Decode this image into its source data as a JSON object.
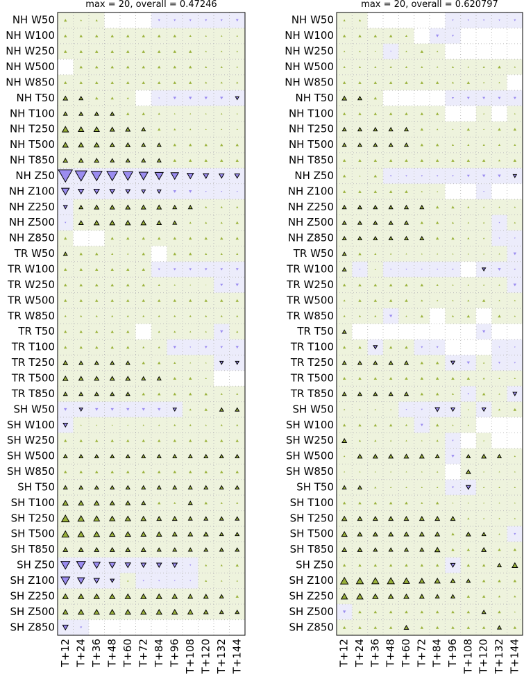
{
  "chart_data": [
    {
      "type": "scorecard",
      "title": "max = 20, overall = 0.47246",
      "rows": [
        "NH W50",
        "NH W100",
        "NH W250",
        "NH W500",
        "NH W850",
        "NH T50",
        "NH T100",
        "NH T250",
        "NH T500",
        "NH T850",
        "NH Z50",
        "NH Z100",
        "NH Z250",
        "NH Z500",
        "NH Z850",
        "TR W50",
        "TR W100",
        "TR W250",
        "TR W500",
        "TR W850",
        "TR T50",
        "TR T100",
        "TR T250",
        "TR T500",
        "TR T850",
        "SH W50",
        "SH W100",
        "SH W250",
        "SH W500",
        "SH W850",
        "SH T50",
        "SH T100",
        "SH T250",
        "SH T500",
        "SH T850",
        "SH Z50",
        "SH Z100",
        "SH Z250",
        "SH Z500",
        "SH Z850"
      ],
      "columns": [
        "T+12",
        "T+24",
        "T+36",
        "T+48",
        "T+60",
        "T+72",
        "T+84",
        "T+96",
        "T+108",
        "T+120",
        "T+132",
        "T+144"
      ],
      "pos_color": "#9ab23a",
      "neg_color": "#9b8cf0",
      "pos_bg": "#eef3dd",
      "neg_bg": "#ececfb",
      "values": [
        [
          1,
          0.3,
          0.5,
          0,
          0,
          0,
          -0.5,
          -0.5,
          -0.5,
          -0.5,
          -0.5,
          -0.8
        ],
        [
          1,
          1,
          1,
          1,
          1,
          1,
          1,
          1,
          0.5,
          0.3,
          0.3,
          0.3
        ],
        [
          1,
          1,
          1,
          1,
          1,
          1,
          1,
          1,
          1,
          0.3,
          0.3,
          0.3
        ],
        [
          0,
          1,
          1,
          1,
          1,
          1,
          1,
          1,
          1,
          0.5,
          0.5,
          0.3
        ],
        [
          1,
          1,
          1,
          1,
          1,
          1,
          1,
          1,
          1,
          0.5,
          0.5,
          0.5
        ],
        [
          2,
          1.5,
          1,
          1,
          0.5,
          0,
          -0.2,
          -1,
          -1,
          -1,
          -1,
          -1.2
        ],
        [
          1.5,
          1.5,
          1.5,
          1.5,
          1,
          1,
          0.5,
          0.2,
          0.2,
          0.2,
          0.3,
          0.2
        ],
        [
          4,
          3,
          3,
          2,
          2,
          1.5,
          1,
          0.5,
          0.3,
          0.2,
          0.2,
          0.2
        ],
        [
          3,
          2.5,
          2.5,
          2,
          2,
          1.5,
          1.5,
          1,
          1,
          1,
          1,
          1
        ],
        [
          2,
          2,
          2,
          1.5,
          1.5,
          1.5,
          1.5,
          1,
          1,
          1,
          1,
          1
        ],
        [
          -20,
          -14,
          -12,
          -12,
          -10,
          -8,
          -7,
          -6,
          -4,
          -3,
          -2.5,
          -2.5
        ],
        [
          -6,
          -3,
          -3,
          -2.5,
          -2,
          -1.5,
          -1.5,
          -1,
          -1,
          -0.2,
          -0.2,
          -0.2
        ],
        [
          -1.5,
          1.5,
          2,
          2,
          2,
          2,
          2,
          1.5,
          1.5,
          0.5,
          0.5,
          0.5
        ],
        [
          -0.3,
          2,
          2.5,
          2.5,
          2.5,
          2.5,
          2,
          1.5,
          0.5,
          0.5,
          0.5,
          1
        ],
        [
          1,
          0,
          0,
          1,
          1,
          1,
          1,
          1,
          1,
          1,
          1,
          1
        ],
        [
          1.5,
          1,
          1,
          0.5,
          0.3,
          1,
          0,
          1,
          1,
          0.5,
          0.5,
          0.5
        ],
        [
          1,
          1,
          1,
          1,
          1,
          1,
          -0.5,
          -0.7,
          -0.7,
          -0.7,
          -0.7,
          -0.8
        ],
        [
          1,
          1,
          1,
          1,
          1,
          1,
          0.5,
          0.3,
          0.2,
          0.1,
          -0.8,
          -1
        ],
        [
          1,
          1,
          1,
          1,
          1,
          1,
          1,
          1,
          1,
          1,
          1,
          1
        ],
        [
          0.5,
          0.5,
          0.5,
          0.5,
          0.5,
          0.5,
          0.5,
          0.5,
          0.5,
          0.5,
          0.5,
          0.5
        ],
        [
          1,
          1,
          1,
          1,
          1,
          0,
          0.5,
          0.5,
          0.3,
          0.3,
          -1,
          0.5
        ],
        [
          1,
          1,
          1,
          1,
          1,
          0.5,
          0.5,
          -1,
          -0.2,
          -0.8,
          -0.7,
          -1
        ],
        [
          2,
          1.5,
          1.5,
          1.5,
          1.5,
          1,
          1,
          0.5,
          0.2,
          0.2,
          -1.2,
          -1.2
        ],
        [
          2.5,
          2,
          2,
          2,
          2,
          1.5,
          1.5,
          1,
          1,
          0.3,
          0,
          0
        ],
        [
          1.5,
          1.5,
          1.5,
          1.5,
          1.5,
          1,
          1,
          1,
          1,
          1,
          0.5,
          0.5
        ],
        [
          -1,
          -1.2,
          -1,
          -1,
          -1,
          -1,
          -1,
          -1.2,
          0.5,
          1,
          1.5,
          1.5
        ],
        [
          -2,
          0.2,
          0.2,
          0.2,
          0.2,
          0.3,
          0.3,
          0.5,
          0.5,
          0.3,
          0.5,
          0.5
        ],
        [
          1,
          1,
          1,
          1,
          1,
          1,
          1,
          1,
          1,
          1,
          1,
          1
        ],
        [
          1.5,
          1.5,
          1.5,
          1.5,
          1.5,
          1.5,
          1.5,
          1.5,
          1.5,
          1.5,
          1.5,
          1.5
        ],
        [
          1,
          1,
          1,
          1,
          1,
          1,
          1,
          1,
          1,
          1,
          1,
          1
        ],
        [
          1.5,
          1.5,
          1.5,
          1.5,
          1.5,
          1.5,
          1.5,
          1.5,
          1.5,
          1.5,
          1.5,
          1.5
        ],
        [
          3,
          2.5,
          2.5,
          2,
          2,
          1.5,
          1,
          0.5,
          1.5,
          1,
          0.5,
          0.5
        ],
        [
          6,
          4,
          3.5,
          3,
          3,
          2.5,
          2,
          2,
          1.5,
          1.5,
          1.5,
          1.5
        ],
        [
          5,
          4,
          3.5,
          3,
          3,
          2.5,
          2.5,
          2,
          2,
          2,
          1.5,
          1.5
        ],
        [
          2,
          2,
          2,
          2,
          2,
          2,
          1.5,
          1.5,
          1.5,
          1.5,
          1.5,
          1.5
        ],
        [
          -8,
          -8,
          -5,
          -4,
          -3,
          -2.5,
          -2.5,
          -2.5,
          -0.3,
          0.5,
          0.5,
          1
        ],
        [
          -8,
          -5,
          -3,
          -1.5,
          0.3,
          -0.3,
          -0.3,
          -0.2,
          -0.2,
          0.5,
          0.3,
          0.3
        ],
        [
          3,
          3,
          3,
          3,
          3,
          3,
          3,
          2.5,
          2,
          2,
          1.5,
          1
        ],
        [
          2.5,
          3,
          3,
          3,
          3,
          3,
          3,
          3,
          2.5,
          2,
          1.5,
          1.5
        ],
        [
          -3,
          -0.5,
          0,
          0,
          0,
          0,
          0,
          0,
          0,
          0,
          0,
          0
        ]
      ]
    },
    {
      "type": "scorecard",
      "title": "max = 20, overall = 0.620797",
      "rows": [
        "NH W50",
        "NH W100",
        "NH W250",
        "NH W500",
        "NH W850",
        "NH T50",
        "NH T100",
        "NH T250",
        "NH T500",
        "NH T850",
        "NH Z50",
        "NH Z100",
        "NH Z250",
        "NH Z500",
        "NH Z850",
        "TR W50",
        "TR W100",
        "TR W250",
        "TR W500",
        "TR W850",
        "TR T50",
        "TR T100",
        "TR T250",
        "TR T500",
        "TR T850",
        "SH W50",
        "SH W100",
        "SH W250",
        "SH W500",
        "SH W850",
        "SH T50",
        "SH T100",
        "SH T250",
        "SH T500",
        "SH T850",
        "SH Z50",
        "SH Z100",
        "SH Z250",
        "SH Z500",
        "SH Z850"
      ],
      "columns": [
        "T+12",
        "T+24",
        "T+36",
        "T+48",
        "T+60",
        "T+72",
        "T+84",
        "T+96",
        "T+108",
        "T+120",
        "T+132",
        "T+144"
      ],
      "pos_color": "#9ab23a",
      "neg_color": "#9b8cf0",
      "pos_bg": "#eef3dd",
      "neg_bg": "#ececfb",
      "values": [
        [
          0.5,
          0.5,
          0,
          0,
          0,
          0,
          0,
          -0.3,
          -0.3,
          -0.3,
          -0.3,
          -0.5
        ],
        [
          1,
          1,
          1,
          1,
          0.5,
          0,
          -1,
          -0.5,
          0,
          0,
          0,
          0
        ],
        [
          0.3,
          0.3,
          0.2,
          -0.2,
          0.3,
          1,
          0.3,
          0,
          0,
          0,
          0,
          0
        ],
        [
          0.5,
          0.5,
          0.5,
          0.5,
          0.5,
          0.5,
          0.3,
          0.5,
          0.3,
          0.5,
          1,
          0.3
        ],
        [
          1,
          1,
          1,
          1,
          1,
          1,
          1,
          0.5,
          1,
          0.3,
          0.3,
          0
        ],
        [
          2,
          1.5,
          1,
          0,
          0,
          0,
          0,
          -0.5,
          -0.8,
          -0.8,
          -0.8,
          -0.8
        ],
        [
          1,
          1,
          1,
          1,
          1,
          1,
          1,
          0,
          0,
          0.2,
          0,
          0.2
        ],
        [
          1.5,
          1.5,
          1.5,
          1.5,
          1.5,
          1,
          0.3,
          0.2,
          1,
          0.2,
          1,
          1
        ],
        [
          1.5,
          1.5,
          1.5,
          1.5,
          1.5,
          1,
          1,
          0.5,
          0.5,
          0.5,
          0.5,
          0.5
        ],
        [
          1,
          1,
          1,
          1,
          1,
          1,
          1,
          1,
          1,
          1,
          0.5,
          1
        ],
        [
          1,
          0.2,
          1,
          -0.3,
          -0.3,
          -0.3,
          -0.3,
          -0.3,
          -0.8,
          -1,
          -1,
          -1.2
        ],
        [
          1,
          1,
          1,
          1,
          1,
          0.3,
          0.2,
          0,
          0,
          -0.2,
          0,
          0
        ],
        [
          1.5,
          1.5,
          1.5,
          1.5,
          1.5,
          1.5,
          1,
          1,
          0.5,
          0.3,
          0.3,
          0.3
        ],
        [
          1.5,
          1.5,
          1.5,
          1.5,
          1.5,
          1,
          1,
          0.5,
          0.3,
          0.3,
          -0.2,
          0.3
        ],
        [
          1.5,
          1.5,
          1.5,
          1.5,
          1.5,
          1.5,
          1,
          1,
          0.5,
          0.3,
          -0.2,
          -0.2
        ],
        [
          1.5,
          1,
          0.5,
          0.3,
          0.2,
          0.2,
          0.2,
          0.2,
          0.2,
          0.2,
          0.2,
          -1
        ],
        [
          1.5,
          -0.2,
          0.2,
          -0.2,
          -0.2,
          -0.2,
          -0.2,
          -0.3,
          0,
          -1.2,
          -1,
          -0.3
        ],
        [
          1,
          1,
          1,
          1,
          1,
          1,
          0.5,
          0.3,
          0.3,
          0.3,
          0.3,
          -1
        ],
        [
          0.5,
          1,
          1,
          1,
          1,
          0.5,
          0.3,
          0.3,
          0.5,
          1,
          0.3,
          0.3
        ],
        [
          0.5,
          0.5,
          0.5,
          -1,
          0.3,
          1,
          0,
          0.5,
          1,
          0,
          1,
          0.3
        ],
        [
          1.5,
          0,
          0,
          0,
          0,
          0,
          0,
          0,
          0,
          -1,
          0,
          0
        ],
        [
          1,
          1,
          -1.5,
          1,
          1,
          -0.5,
          -0.5,
          0,
          0,
          0,
          -0.2,
          -0.2
        ],
        [
          1.5,
          1.5,
          1.5,
          1.5,
          1.5,
          1,
          1,
          -1.5,
          -1,
          0.3,
          -0.5,
          -0.3
        ],
        [
          1,
          1,
          1,
          1,
          1,
          1,
          1,
          1,
          1,
          0.5,
          0.3,
          0.3
        ],
        [
          1.5,
          1.5,
          1.5,
          1.5,
          1.5,
          1,
          1,
          0.5,
          -0.3,
          1,
          0.3,
          -1.5
        ],
        [
          0.3,
          0.3,
          0.3,
          0.2,
          -0.2,
          -0.3,
          -2,
          -1.5,
          0.2,
          -1.5,
          0.5,
          1
        ],
        [
          1,
          1,
          1,
          1,
          0.5,
          -0.8,
          1,
          0.3,
          0.3,
          0,
          0,
          0
        ],
        [
          2,
          0.5,
          0.5,
          0.3,
          0.3,
          0.2,
          0.5,
          -0.3,
          0,
          0.2,
          0,
          0
        ],
        [
          0.3,
          2,
          2,
          2,
          2,
          2,
          1.5,
          -1,
          1.5,
          2,
          1.5,
          0.3
        ],
        [
          0.2,
          0.2,
          0.2,
          0.2,
          0.2,
          0.2,
          0.3,
          0,
          2,
          0.2,
          0.2,
          0.2
        ],
        [
          1.5,
          1.5,
          0.5,
          0.3,
          0.3,
          0.3,
          0.3,
          -0.5,
          -2,
          0.3,
          0.3,
          0.3
        ],
        [
          1,
          1,
          1,
          1,
          1,
          0.5,
          1,
          0.2,
          0.2,
          0.2,
          0.2,
          0.2
        ],
        [
          2.5,
          2,
          2,
          2,
          2,
          2,
          2,
          2,
          0.5,
          0.3,
          0.3,
          0.3
        ],
        [
          3,
          2,
          2,
          2,
          2,
          2,
          2,
          1,
          2,
          1.5,
          0.3,
          -0.5
        ],
        [
          2,
          2,
          1.5,
          1.5,
          1.5,
          1.5,
          2.5,
          1,
          1,
          2,
          1,
          1
        ],
        [
          1,
          1,
          1,
          1,
          1,
          1,
          1,
          -2,
          1,
          1,
          1.5,
          3
        ],
        [
          6,
          5,
          5,
          5,
          4,
          3,
          3,
          2,
          1.5,
          1,
          1,
          1
        ],
        [
          4,
          4,
          3,
          2.5,
          2.5,
          2,
          1.5,
          1.5,
          1,
          1,
          0.5,
          0.5
        ],
        [
          -1,
          1,
          1,
          1,
          1,
          1,
          1,
          1,
          1,
          1.5,
          1,
          0.2
        ],
        [
          1,
          1,
          1,
          1,
          2,
          1,
          1,
          1,
          1,
          1,
          1.5,
          1
        ]
      ]
    }
  ]
}
